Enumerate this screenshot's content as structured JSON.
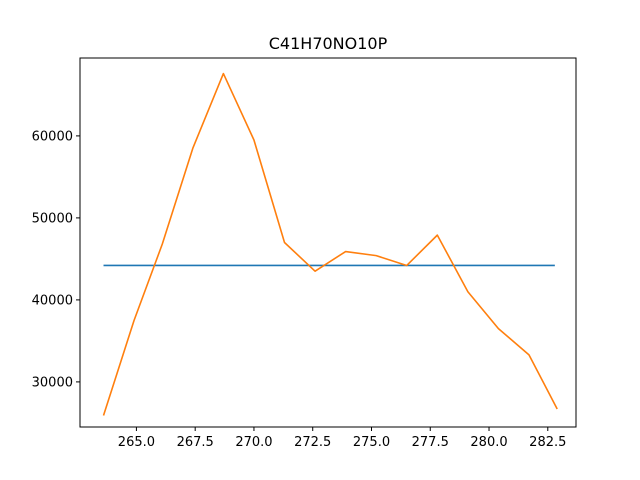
{
  "chart_data": {
    "type": "line",
    "title": "C41H70NO10P",
    "xlabel": "",
    "ylabel": "",
    "xlim": [
      262.6,
      283.7
    ],
    "ylim": [
      24500,
      69500
    ],
    "grid": false,
    "x_ticks": [
      265.0,
      267.5,
      270.0,
      272.5,
      275.0,
      277.5,
      280.0,
      282.5
    ],
    "x_tick_labels": [
      "265.0",
      "267.5",
      "270.0",
      "272.5",
      "275.0",
      "277.5",
      "280.0",
      "282.5"
    ],
    "y_ticks": [
      30000,
      40000,
      50000,
      60000
    ],
    "y_tick_labels": [
      "30000",
      "40000",
      "50000",
      "60000"
    ],
    "series": [
      {
        "color": "#1f77b4",
        "x": [
          263.6,
          282.8
        ],
        "y": [
          44200,
          44200
        ]
      },
      {
        "color": "#ff7f0e",
        "x": [
          263.6,
          264.9,
          266.1,
          267.4,
          268.7,
          270.0,
          271.3,
          272.6,
          273.9,
          275.2,
          276.5,
          277.8,
          279.1,
          280.4,
          281.7,
          282.9
        ],
        "y": [
          25900,
          37500,
          46800,
          58500,
          67600,
          59500,
          47000,
          43500,
          45900,
          45400,
          44200,
          47900,
          41000,
          36500,
          33300,
          26700
        ]
      }
    ]
  }
}
